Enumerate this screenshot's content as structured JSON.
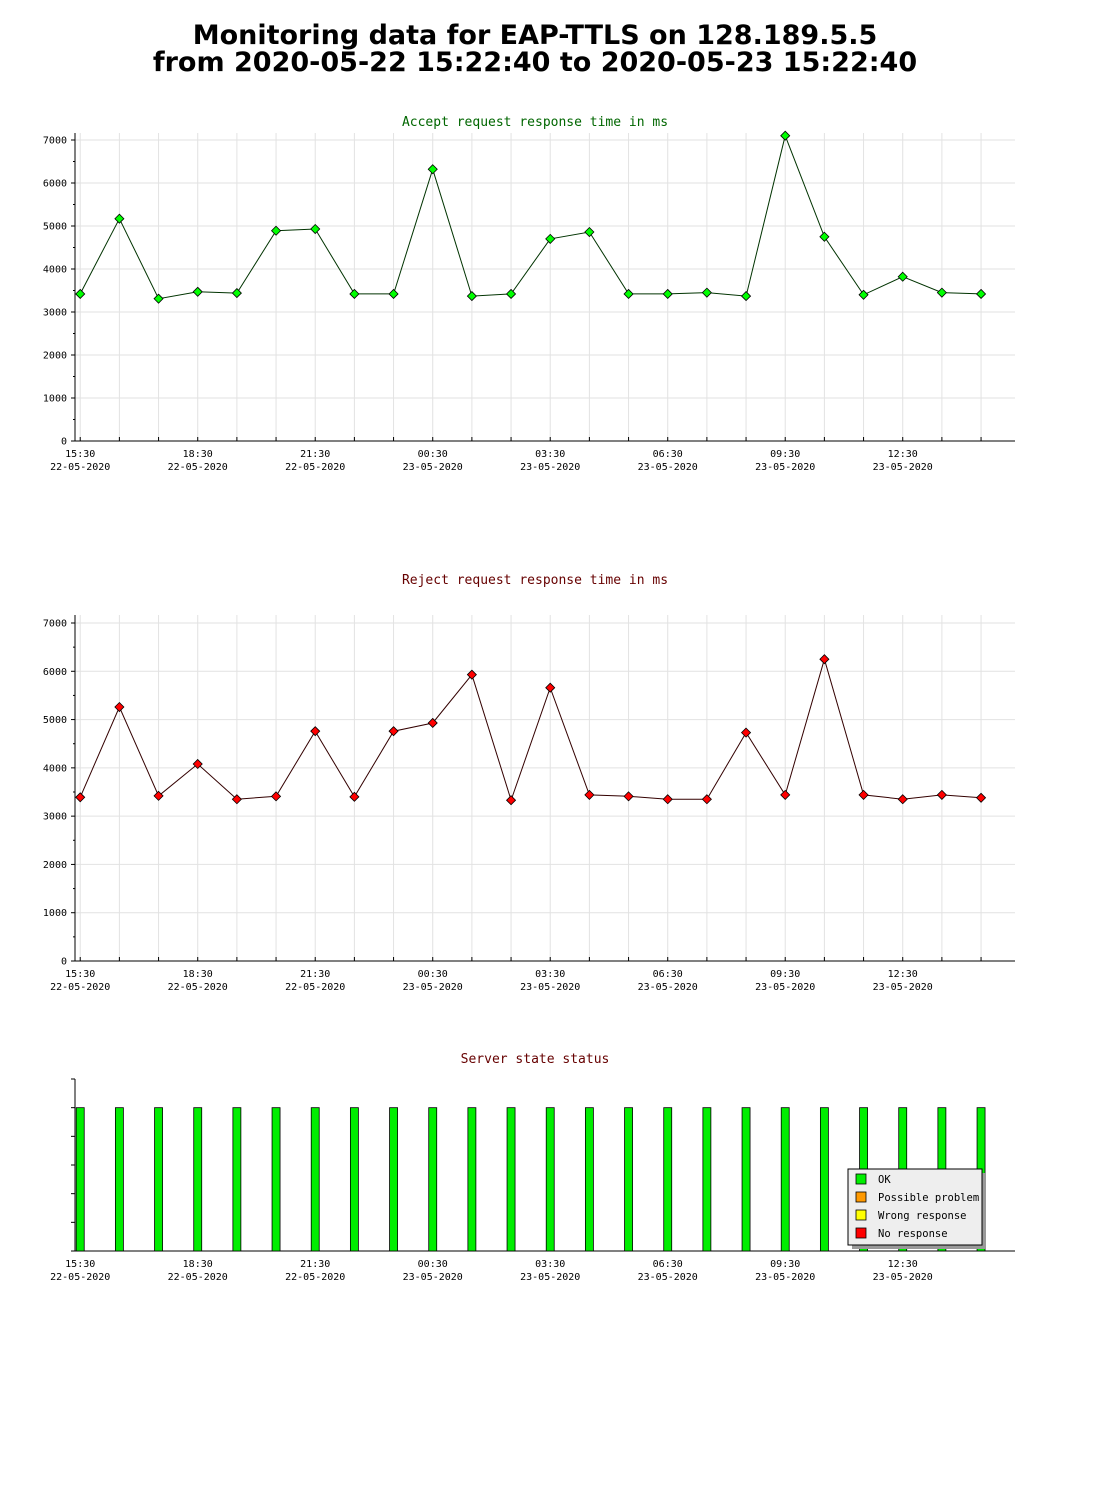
{
  "header": {
    "line1": "Monitoring data for EAP-TTLS on 128.189.5.5",
    "line2": "from 2020-05-22 15:22:40 to 2020-05-23 15:22:40"
  },
  "x_ticks": [
    {
      "time": "15:30",
      "date": "22-05-2020"
    },
    {
      "time": "18:30",
      "date": "22-05-2020"
    },
    {
      "time": "21:30",
      "date": "22-05-2020"
    },
    {
      "time": "00:30",
      "date": "23-05-2020"
    },
    {
      "time": "03:30",
      "date": "23-05-2020"
    },
    {
      "time": "06:30",
      "date": "23-05-2020"
    },
    {
      "time": "09:30",
      "date": "23-05-2020"
    },
    {
      "time": "12:30",
      "date": "23-05-2020"
    }
  ],
  "chart_data": [
    {
      "type": "line",
      "title": "Accept request response time in ms",
      "title_color": "#006600",
      "line_color": "#003300",
      "marker_color": "#00ff00",
      "ylim": [
        0,
        7000
      ],
      "y_ticks": [
        "0",
        "1000",
        "2000",
        "3000",
        "4000",
        "5000",
        "6000",
        "7000"
      ],
      "xlim": [
        "2020-05-22 15:22",
        "2020-05-23 15:22"
      ],
      "x": [
        "2020-05-22 15:30",
        "2020-05-22 16:30",
        "2020-05-22 17:30",
        "2020-05-22 18:30",
        "2020-05-22 19:30",
        "2020-05-22 20:30",
        "2020-05-22 21:30",
        "2020-05-22 22:30",
        "2020-05-22 23:30",
        "2020-05-23 00:30",
        "2020-05-23 01:30",
        "2020-05-23 02:30",
        "2020-05-23 03:30",
        "2020-05-23 04:30",
        "2020-05-23 05:30",
        "2020-05-23 06:30",
        "2020-05-23 07:30",
        "2020-05-23 08:30",
        "2020-05-23 09:30",
        "2020-05-23 10:30",
        "2020-05-23 11:30",
        "2020-05-23 12:30",
        "2020-05-23 13:30",
        "2020-05-23 14:30"
      ],
      "values": [
        3420,
        5170,
        3310,
        3470,
        3440,
        4890,
        4930,
        3420,
        3420,
        6320,
        3370,
        3420,
        4700,
        4860,
        3420,
        3420,
        3450,
        3370,
        7100,
        4750,
        3400,
        3820,
        3450,
        3420
      ],
      "grid": true
    },
    {
      "type": "line",
      "title": "Reject request response time in ms",
      "title_color": "#660000",
      "line_color": "#330000",
      "marker_color": "#ff0000",
      "ylim": [
        0,
        7000
      ],
      "y_ticks": [
        "0",
        "1000",
        "2000",
        "3000",
        "4000",
        "5000",
        "6000",
        "7000"
      ],
      "xlim": [
        "2020-05-22 15:22",
        "2020-05-23 15:22"
      ],
      "x": [
        "2020-05-22 15:30",
        "2020-05-22 16:30",
        "2020-05-22 17:30",
        "2020-05-22 18:30",
        "2020-05-22 19:30",
        "2020-05-22 20:30",
        "2020-05-22 21:30",
        "2020-05-22 22:30",
        "2020-05-22 23:30",
        "2020-05-23 00:30",
        "2020-05-23 01:30",
        "2020-05-23 02:30",
        "2020-05-23 03:30",
        "2020-05-23 04:30",
        "2020-05-23 05:30",
        "2020-05-23 06:30",
        "2020-05-23 07:30",
        "2020-05-23 08:30",
        "2020-05-23 09:30",
        "2020-05-23 10:30",
        "2020-05-23 11:30",
        "2020-05-23 12:30",
        "2020-05-23 13:30",
        "2020-05-23 14:30"
      ],
      "values": [
        3390,
        5260,
        3420,
        4080,
        3350,
        3410,
        4760,
        3400,
        4760,
        4930,
        5930,
        3330,
        5660,
        3440,
        3410,
        3350,
        3350,
        4730,
        3440,
        6250,
        3440,
        3350,
        3440,
        3380
      ],
      "grid": true
    },
    {
      "type": "bar",
      "title": "Server state status",
      "title_color": "#660000",
      "xlim": [
        "2020-05-22 15:22",
        "2020-05-23 15:22"
      ],
      "x": [
        "2020-05-22 15:30",
        "2020-05-22 16:30",
        "2020-05-22 17:30",
        "2020-05-22 18:30",
        "2020-05-22 19:30",
        "2020-05-22 20:30",
        "2020-05-22 21:30",
        "2020-05-22 22:30",
        "2020-05-22 23:30",
        "2020-05-23 00:30",
        "2020-05-23 01:30",
        "2020-05-23 02:30",
        "2020-05-23 03:30",
        "2020-05-23 04:30",
        "2020-05-23 05:30",
        "2020-05-23 06:30",
        "2020-05-23 07:30",
        "2020-05-23 08:30",
        "2020-05-23 09:30",
        "2020-05-23 10:30",
        "2020-05-23 11:30",
        "2020-05-23 12:30",
        "2020-05-23 13:30",
        "2020-05-23 14:30"
      ],
      "states": [
        "OK",
        "OK",
        "OK",
        "OK",
        "OK",
        "OK",
        "OK",
        "OK",
        "OK",
        "OK",
        "OK",
        "OK",
        "OK",
        "OK",
        "OK",
        "OK",
        "OK",
        "OK",
        "OK",
        "OK",
        "OK",
        "OK",
        "OK",
        "OK"
      ],
      "legend": [
        {
          "label": "OK",
          "color": "#00ee00"
        },
        {
          "label": "Possible problem",
          "color": "#ff9900"
        },
        {
          "label": "Wrong response",
          "color": "#ffff00"
        },
        {
          "label": "No response",
          "color": "#ff0000"
        }
      ],
      "legend_position": "bottom-right",
      "grid": false
    }
  ]
}
